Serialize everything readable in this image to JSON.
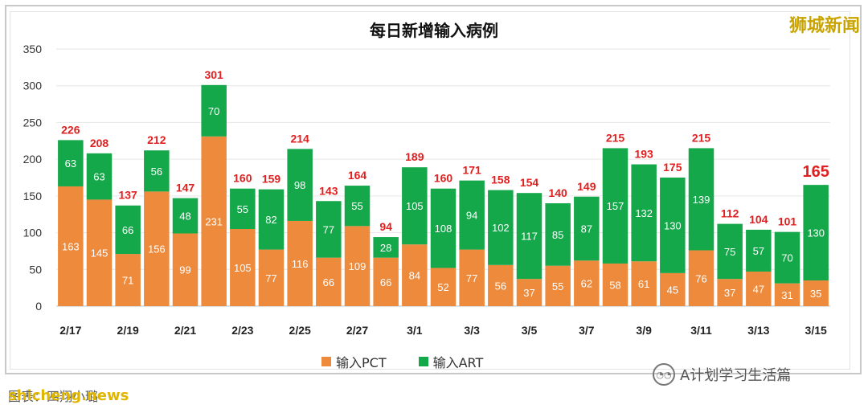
{
  "chart_data": {
    "type": "bar",
    "stacked": true,
    "title": "每日新增输入病例",
    "ylim": [
      0,
      350
    ],
    "yticks": [
      0,
      50,
      100,
      150,
      200,
      250,
      300,
      350
    ],
    "categories": [
      "2/17",
      "2/18",
      "2/19",
      "2/20",
      "2/21",
      "2/22",
      "2/23",
      "2/24",
      "2/25",
      "2/26",
      "2/27",
      "2/28",
      "3/1",
      "3/2",
      "3/3",
      "3/4",
      "3/5",
      "3/6",
      "3/7",
      "3/8",
      "3/9",
      "3/10",
      "3/11",
      "3/12",
      "3/13",
      "3/14",
      "3/15"
    ],
    "xtick_labels": [
      "2/17",
      "",
      "2/19",
      "",
      "2/21",
      "",
      "2/23",
      "",
      "2/25",
      "",
      "2/27",
      "",
      "3/1",
      "",
      "3/3",
      "",
      "3/5",
      "",
      "3/7",
      "",
      "3/9",
      "",
      "3/11",
      "",
      "3/13",
      "",
      "3/15"
    ],
    "series": [
      {
        "name": "输入PCT",
        "color": "#ed8a3c",
        "values": [
          163,
          145,
          71,
          156,
          99,
          231,
          105,
          77,
          116,
          66,
          109,
          66,
          84,
          52,
          77,
          56,
          37,
          55,
          62,
          58,
          61,
          45,
          76,
          37,
          47,
          31,
          35
        ]
      },
      {
        "name": "输入ART",
        "color": "#14a84a",
        "values": [
          63,
          63,
          66,
          56,
          48,
          70,
          55,
          82,
          98,
          77,
          55,
          28,
          105,
          108,
          94,
          102,
          117,
          85,
          87,
          157,
          132,
          130,
          139,
          75,
          57,
          70,
          130
        ]
      }
    ],
    "totals": [
      226,
      208,
      137,
      212,
      147,
      301,
      160,
      159,
      214,
      143,
      164,
      94,
      189,
      160,
      171,
      158,
      154,
      140,
      149,
      215,
      193,
      175,
      215,
      112,
      104,
      101,
      165
    ],
    "total_color": "#e02020",
    "grid": true,
    "legend_position": "bottom"
  },
  "header": {
    "brand": "狮城新闻"
  },
  "footer": {
    "caption": "图表：四翔小璐",
    "watermark_left": "shicheng.news",
    "watermark_right": "A计划学习生活篇"
  }
}
